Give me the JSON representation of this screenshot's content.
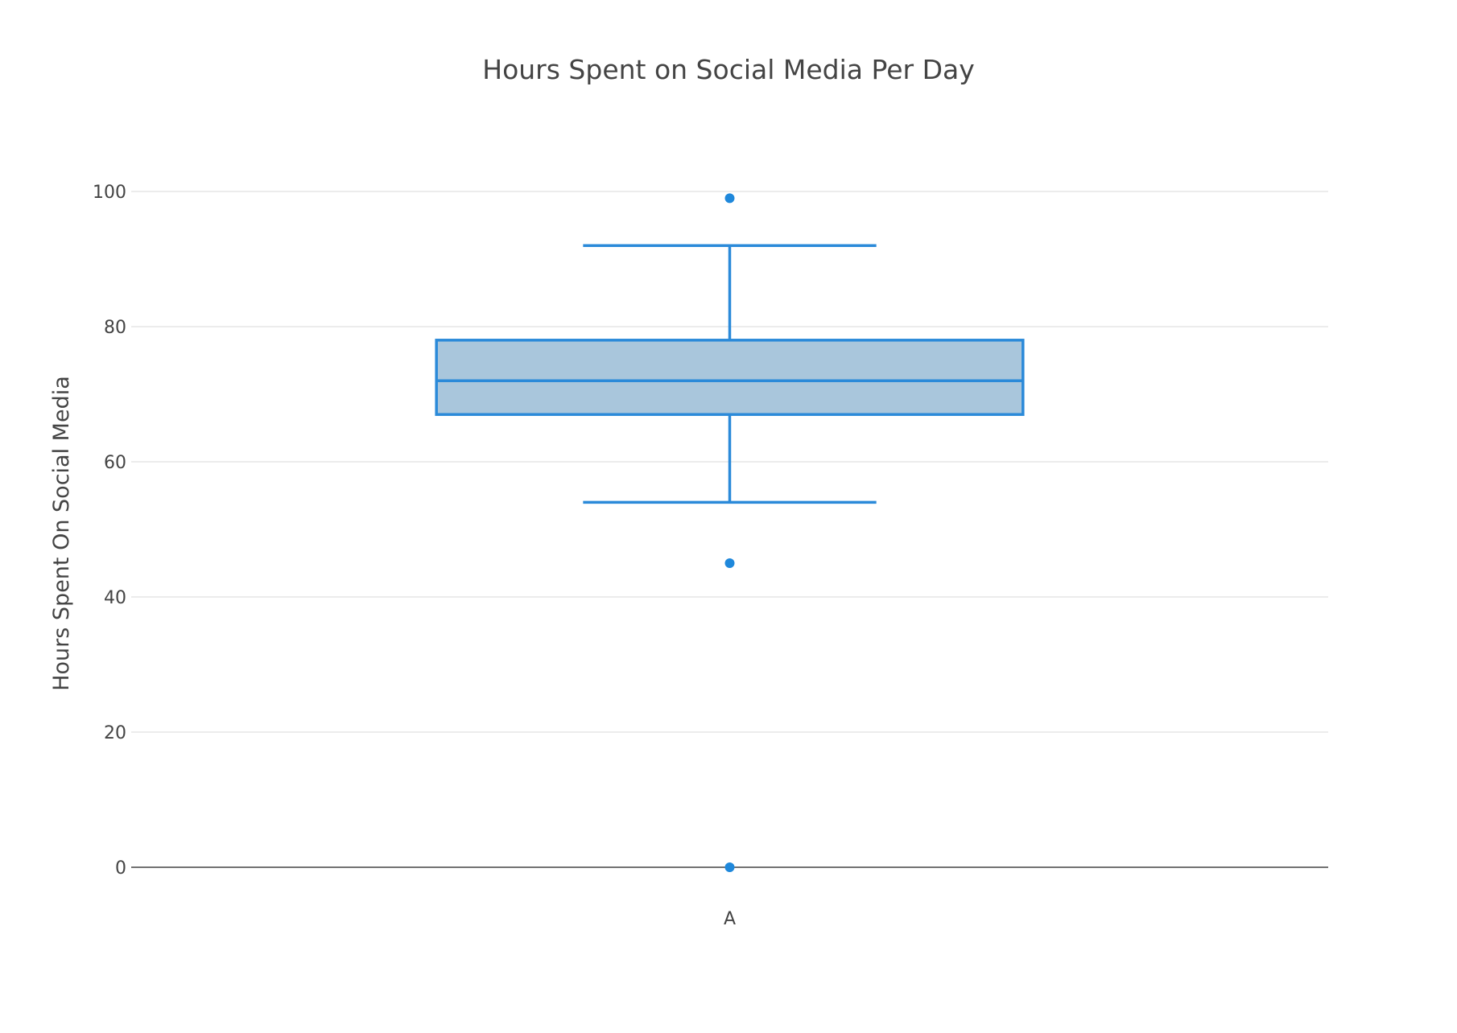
{
  "chart_data": {
    "type": "box",
    "title": "Hours Spent on Social Media Per Day",
    "xlabel": "",
    "ylabel": "Hours Spent On Social Media",
    "categories": [
      "A"
    ],
    "ylim": [
      0,
      110
    ],
    "yticks": [
      0,
      20,
      40,
      60,
      80,
      100
    ],
    "grid": true,
    "legend": "none",
    "series": [
      {
        "category": "A",
        "min": 54,
        "q1": 67,
        "median": 72,
        "q3": 78,
        "max": 92,
        "outliers": [
          99,
          45,
          0
        ]
      }
    ],
    "colors": {
      "line": "#2b8ad9",
      "fill": "#a9c6dc",
      "marker": "#1f88db",
      "grid": "#e6e6e6",
      "zeroline": "#444444",
      "text": "#444444"
    }
  }
}
